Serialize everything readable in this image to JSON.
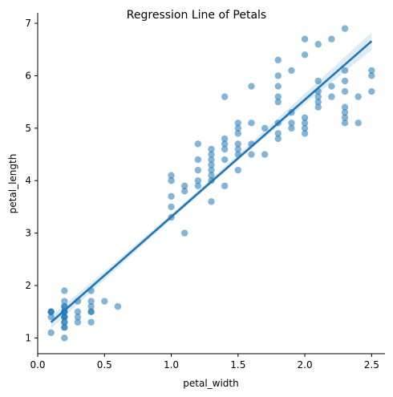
{
  "chart_data": {
    "type": "scatter",
    "title": "Regression Line of Petals",
    "xlabel": "petal_width",
    "ylabel": "petal_length",
    "xlim": [
      0,
      2.6
    ],
    "ylim": [
      0.7,
      7.2
    ],
    "x_ticks": [
      0.0,
      0.5,
      1.0,
      1.5,
      2.0,
      2.5
    ],
    "x_tick_labels": [
      "0.0",
      "0.5",
      "1.0",
      "1.5",
      "2.0",
      "2.5"
    ],
    "y_ticks": [
      1,
      2,
      3,
      4,
      5,
      6,
      7
    ],
    "y_tick_labels": [
      "1",
      "2",
      "3",
      "4",
      "5",
      "6",
      "7"
    ],
    "grid": false,
    "colors": {
      "points": "#1f77b4",
      "line": "#1f77b4",
      "ci_band": "#1f77b4"
    },
    "series": [
      {
        "kind": "points",
        "points": [
          [
            0.1,
            1.1
          ],
          [
            0.1,
            1.4
          ],
          [
            0.1,
            1.5
          ],
          [
            0.1,
            1.5
          ],
          [
            0.1,
            1.5
          ],
          [
            0.2,
            1.0
          ],
          [
            0.2,
            1.2
          ],
          [
            0.2,
            1.2
          ],
          [
            0.2,
            1.3
          ],
          [
            0.2,
            1.3
          ],
          [
            0.2,
            1.4
          ],
          [
            0.2,
            1.4
          ],
          [
            0.2,
            1.4
          ],
          [
            0.2,
            1.5
          ],
          [
            0.2,
            1.5
          ],
          [
            0.2,
            1.5
          ],
          [
            0.2,
            1.6
          ],
          [
            0.2,
            1.6
          ],
          [
            0.2,
            1.7
          ],
          [
            0.2,
            1.9
          ],
          [
            0.3,
            1.3
          ],
          [
            0.3,
            1.4
          ],
          [
            0.3,
            1.5
          ],
          [
            0.3,
            1.7
          ],
          [
            0.4,
            1.3
          ],
          [
            0.4,
            1.5
          ],
          [
            0.4,
            1.5
          ],
          [
            0.4,
            1.6
          ],
          [
            0.4,
            1.7
          ],
          [
            0.4,
            1.9
          ],
          [
            0.5,
            1.7
          ],
          [
            0.6,
            1.6
          ],
          [
            1.0,
            3.3
          ],
          [
            1.0,
            3.5
          ],
          [
            1.0,
            3.7
          ],
          [
            1.0,
            4.0
          ],
          [
            1.0,
            4.1
          ],
          [
            1.1,
            3.0
          ],
          [
            1.1,
            3.8
          ],
          [
            1.1,
            3.9
          ],
          [
            1.2,
            3.9
          ],
          [
            1.2,
            4.0
          ],
          [
            1.2,
            4.2
          ],
          [
            1.2,
            4.4
          ],
          [
            1.2,
            4.7
          ],
          [
            1.3,
            3.6
          ],
          [
            1.3,
            4.0
          ],
          [
            1.3,
            4.1
          ],
          [
            1.3,
            4.2
          ],
          [
            1.3,
            4.3
          ],
          [
            1.3,
            4.4
          ],
          [
            1.3,
            4.5
          ],
          [
            1.3,
            4.6
          ],
          [
            1.4,
            3.9
          ],
          [
            1.4,
            4.4
          ],
          [
            1.4,
            4.6
          ],
          [
            1.4,
            4.7
          ],
          [
            1.4,
            4.8
          ],
          [
            1.4,
            5.6
          ],
          [
            1.5,
            4.2
          ],
          [
            1.5,
            4.5
          ],
          [
            1.5,
            4.6
          ],
          [
            1.5,
            4.7
          ],
          [
            1.5,
            4.9
          ],
          [
            1.5,
            5.0
          ],
          [
            1.5,
            5.1
          ],
          [
            1.6,
            4.5
          ],
          [
            1.6,
            4.7
          ],
          [
            1.6,
            5.1
          ],
          [
            1.6,
            5.8
          ],
          [
            1.7,
            4.5
          ],
          [
            1.7,
            5.0
          ],
          [
            1.8,
            4.8
          ],
          [
            1.8,
            4.9
          ],
          [
            1.8,
            5.1
          ],
          [
            1.8,
            5.5
          ],
          [
            1.8,
            5.6
          ],
          [
            1.8,
            5.8
          ],
          [
            1.8,
            6.0
          ],
          [
            1.8,
            6.3
          ],
          [
            1.9,
            5.0
          ],
          [
            1.9,
            5.1
          ],
          [
            1.9,
            5.3
          ],
          [
            1.9,
            6.1
          ],
          [
            2.0,
            4.9
          ],
          [
            2.0,
            5.0
          ],
          [
            2.0,
            5.1
          ],
          [
            2.0,
            5.2
          ],
          [
            2.0,
            6.4
          ],
          [
            2.0,
            6.7
          ],
          [
            2.1,
            5.4
          ],
          [
            2.1,
            5.5
          ],
          [
            2.1,
            5.6
          ],
          [
            2.1,
            5.7
          ],
          [
            2.1,
            5.9
          ],
          [
            2.1,
            6.6
          ],
          [
            2.2,
            5.6
          ],
          [
            2.2,
            5.8
          ],
          [
            2.2,
            6.7
          ],
          [
            2.3,
            5.1
          ],
          [
            2.3,
            5.2
          ],
          [
            2.3,
            5.3
          ],
          [
            2.3,
            5.4
          ],
          [
            2.3,
            5.7
          ],
          [
            2.3,
            5.9
          ],
          [
            2.3,
            6.1
          ],
          [
            2.3,
            6.9
          ],
          [
            2.4,
            5.1
          ],
          [
            2.4,
            5.6
          ],
          [
            2.5,
            5.7
          ],
          [
            2.5,
            6.0
          ],
          [
            2.5,
            6.1
          ]
        ]
      },
      {
        "kind": "regression_line",
        "x": [
          0.1,
          2.5
        ],
        "y": [
          1.3,
          6.66
        ]
      },
      {
        "kind": "confidence_band",
        "x": [
          0.1,
          0.5,
          1.0,
          1.3,
          1.6,
          2.0,
          2.5
        ],
        "lower": [
          1.18,
          2.11,
          3.26,
          3.94,
          4.61,
          5.46,
          6.49
        ],
        "upper": [
          1.42,
          2.27,
          3.36,
          4.04,
          4.73,
          5.66,
          6.83
        ]
      }
    ]
  }
}
